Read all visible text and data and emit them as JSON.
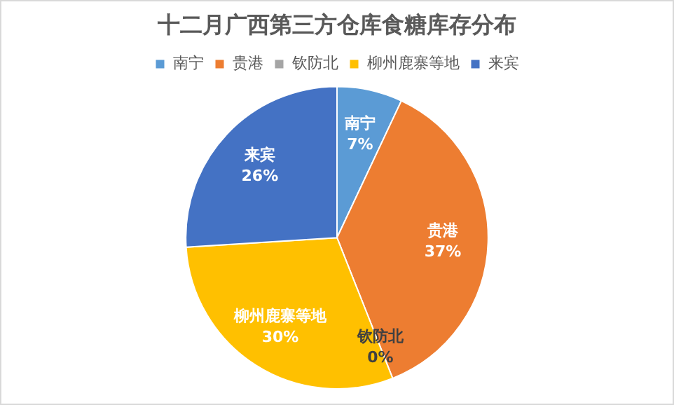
{
  "chart_data": {
    "type": "pie",
    "title": "十二月广西第三方仓库食糖库存分布",
    "categories": [
      "南宁",
      "贵港",
      "钦防北",
      "柳州鹿寨等地",
      "来宾"
    ],
    "values": [
      7,
      37,
      0,
      30,
      26
    ],
    "colors": [
      "#5b9bd5",
      "#ed7d31",
      "#a5a5a5",
      "#ffc000",
      "#4472c4"
    ],
    "value_labels": [
      "7%",
      "37%",
      "0%",
      "30%",
      "26%"
    ],
    "legend": "top"
  }
}
